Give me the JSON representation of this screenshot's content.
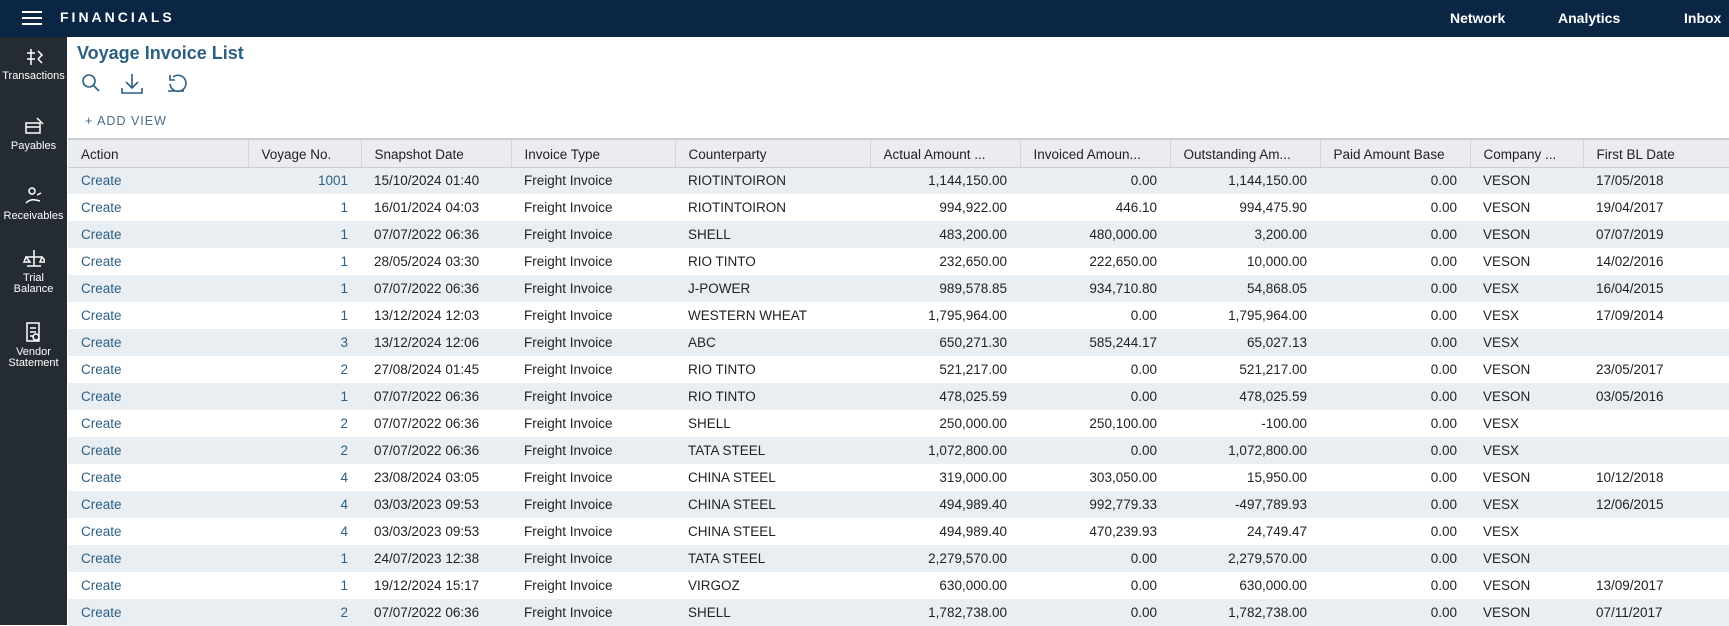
{
  "header": {
    "app_title": "FINANCIALS",
    "nav": [
      "Network",
      "Analytics",
      "Inbox"
    ]
  },
  "sidebar": [
    "Transactions",
    "Payables",
    "Receivables",
    "Trial Balance",
    "Vendor Statement"
  ],
  "page": {
    "title": "Voyage Invoice List",
    "add_view": "+ ADD VIEW"
  },
  "table": {
    "columns": [
      "Action",
      "Voyage No.",
      "Snapshot Date",
      "Invoice Type",
      "Counterparty",
      "Actual Amount ...",
      "Invoiced Amoun...",
      "Outstanding Am...",
      "Paid Amount Base",
      "Company ...",
      "First BL Date"
    ],
    "rows": [
      [
        "Create",
        "1001",
        "15/10/2024 01:40",
        "Freight Invoice",
        "RIOTINTOIRON",
        "1,144,150.00",
        "0.00",
        "1,144,150.00",
        "0.00",
        "VESON",
        "17/05/2018"
      ],
      [
        "Create",
        "1",
        "16/01/2024 04:03",
        "Freight Invoice",
        "RIOTINTOIRON",
        "994,922.00",
        "446.10",
        "994,475.90",
        "0.00",
        "VESON",
        "19/04/2017"
      ],
      [
        "Create",
        "1",
        "07/07/2022 06:36",
        "Freight Invoice",
        "SHELL",
        "483,200.00",
        "480,000.00",
        "3,200.00",
        "0.00",
        "VESON",
        "07/07/2019"
      ],
      [
        "Create",
        "1",
        "28/05/2024 03:30",
        "Freight Invoice",
        "RIO TINTO",
        "232,650.00",
        "222,650.00",
        "10,000.00",
        "0.00",
        "VESON",
        "14/02/2016"
      ],
      [
        "Create",
        "1",
        "07/07/2022 06:36",
        "Freight Invoice",
        "J-POWER",
        "989,578.85",
        "934,710.80",
        "54,868.05",
        "0.00",
        "VESX",
        "16/04/2015"
      ],
      [
        "Create",
        "1",
        "13/12/2024 12:03",
        "Freight Invoice",
        "WESTERN WHEAT",
        "1,795,964.00",
        "0.00",
        "1,795,964.00",
        "0.00",
        "VESX",
        "17/09/2014"
      ],
      [
        "Create",
        "3",
        "13/12/2024 12:06",
        "Freight Invoice",
        "ABC",
        "650,271.30",
        "585,244.17",
        "65,027.13",
        "0.00",
        "VESX",
        null
      ],
      [
        "Create",
        "2",
        "27/08/2024 01:45",
        "Freight Invoice",
        "RIO TINTO",
        "521,217.00",
        "0.00",
        "521,217.00",
        "0.00",
        "VESON",
        "23/05/2017"
      ],
      [
        "Create",
        "1",
        "07/07/2022 06:36",
        "Freight Invoice",
        "RIO TINTO",
        "478,025.59",
        "0.00",
        "478,025.59",
        "0.00",
        "VESON",
        "03/05/2016"
      ],
      [
        "Create",
        "2",
        "07/07/2022 06:36",
        "Freight Invoice",
        "SHELL",
        "250,000.00",
        "250,100.00",
        "-100.00",
        "0.00",
        "VESX",
        null
      ],
      [
        "Create",
        "2",
        "07/07/2022 06:36",
        "Freight Invoice",
        "TATA STEEL",
        "1,072,800.00",
        "0.00",
        "1,072,800.00",
        "0.00",
        "VESX",
        null
      ],
      [
        "Create",
        "4",
        "23/08/2024 03:05",
        "Freight Invoice",
        "CHINA STEEL",
        "319,000.00",
        "303,050.00",
        "15,950.00",
        "0.00",
        "VESON",
        "10/12/2018"
      ],
      [
        "Create",
        "4",
        "03/03/2023 09:53",
        "Freight Invoice",
        "CHINA STEEL",
        "494,989.40",
        "992,779.33",
        "-497,789.93",
        "0.00",
        "VESX",
        "12/06/2015"
      ],
      [
        "Create",
        "4",
        "03/03/2023 09:53",
        "Freight Invoice",
        "CHINA STEEL",
        "494,989.40",
        "470,239.93",
        "24,749.47",
        "0.00",
        "VESX",
        null
      ],
      [
        "Create",
        "1",
        "24/07/2023 12:38",
        "Freight Invoice",
        "TATA STEEL",
        "2,279,570.00",
        "0.00",
        "2,279,570.00",
        "0.00",
        "VESON",
        null
      ],
      [
        "Create",
        "1",
        "19/12/2024 15:17",
        "Freight Invoice",
        "VIRGOZ",
        "630,000.00",
        "0.00",
        "630,000.00",
        "0.00",
        "VESON",
        "13/09/2017"
      ],
      [
        "Create",
        "2",
        "07/07/2022 06:36",
        "Freight Invoice",
        "SHELL",
        "1,782,738.00",
        "0.00",
        "1,782,738.00",
        "0.00",
        "VESON",
        "07/11/2017"
      ]
    ]
  }
}
